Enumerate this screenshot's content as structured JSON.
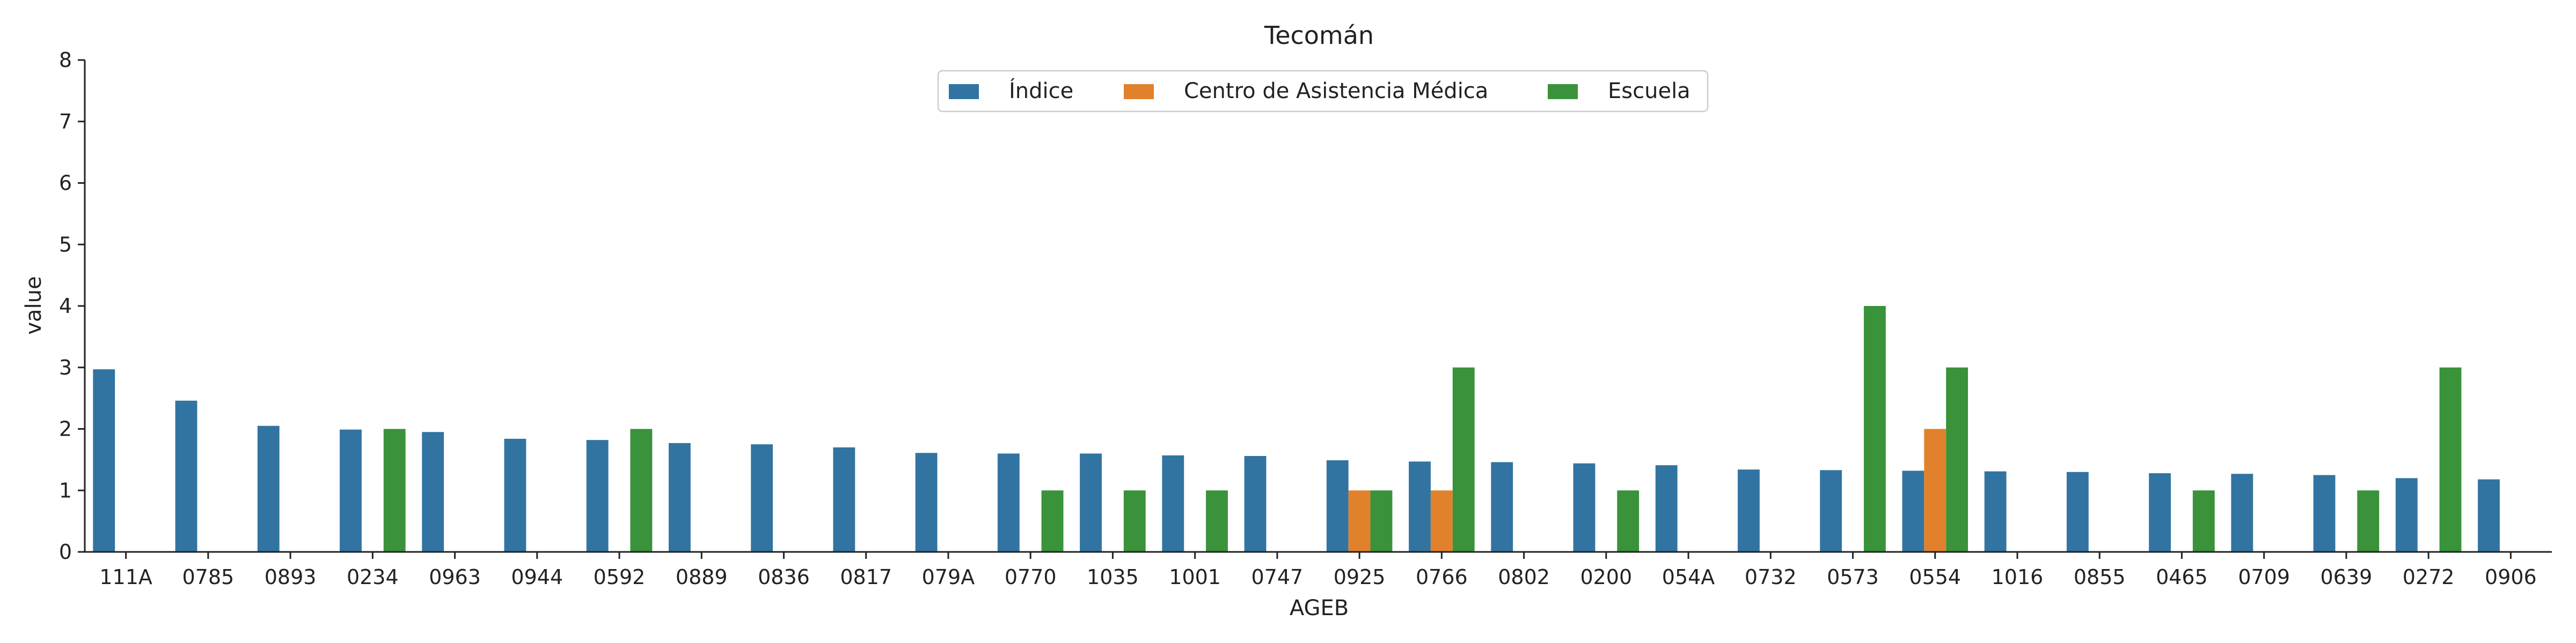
{
  "chart_data": {
    "type": "bar",
    "title": "Tecomán",
    "xlabel": "AGEB",
    "ylabel": "value",
    "ylim": [
      0,
      8
    ],
    "yticks": [
      0,
      1,
      2,
      3,
      4,
      5,
      6,
      7,
      8
    ],
    "legend_position": "top-center",
    "grid": false,
    "categories": [
      "111A",
      "0785",
      "0893",
      "0234",
      "0963",
      "0944",
      "0592",
      "0889",
      "0836",
      "0817",
      "079A",
      "0770",
      "1035",
      "1001",
      "0747",
      "0925",
      "0766",
      "0802",
      "0200",
      "054A",
      "0732",
      "0573",
      "0554",
      "1016",
      "0855",
      "0465",
      "0709",
      "0639",
      "0272",
      "0906"
    ],
    "series": [
      {
        "name": "Índice",
        "color": "#3274a1",
        "values": [
          2.97,
          2.46,
          2.05,
          1.99,
          1.95,
          1.84,
          1.82,
          1.77,
          1.75,
          1.7,
          1.61,
          1.6,
          1.6,
          1.57,
          1.56,
          1.49,
          1.47,
          1.46,
          1.44,
          1.41,
          1.34,
          1.33,
          1.32,
          1.31,
          1.3,
          1.28,
          1.27,
          1.25,
          1.2,
          1.18
        ]
      },
      {
        "name": "Centro de Asistencia Médica",
        "color": "#e1812c",
        "values": [
          0,
          0,
          0,
          0,
          0,
          0,
          0,
          0,
          0,
          0,
          0,
          0,
          0,
          0,
          0,
          1,
          1,
          0,
          0,
          0,
          0,
          0,
          2,
          0,
          0,
          0,
          0,
          0,
          0,
          0
        ]
      },
      {
        "name": "Escuela",
        "color": "#3a923a",
        "values": [
          0,
          0,
          0,
          2,
          0,
          0,
          2,
          0,
          0,
          0,
          0,
          1,
          1,
          1,
          0,
          1,
          3,
          0,
          1,
          0,
          0,
          4,
          3,
          0,
          0,
          1,
          0,
          1,
          3,
          0
        ]
      }
    ]
  }
}
